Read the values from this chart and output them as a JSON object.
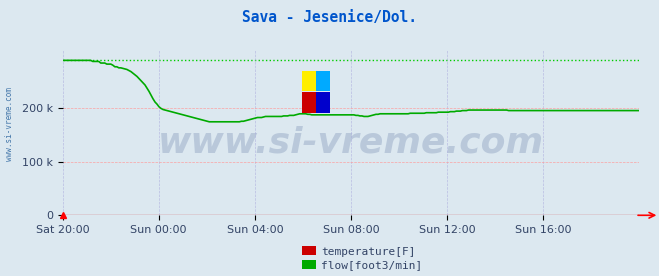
{
  "title": "Sava - Jesenice/Dol.",
  "title_color": "#0055cc",
  "bg_color": "#dce8f0",
  "plot_bg_color": "#dce8f0",
  "grid_color_h": "#ff9999",
  "grid_color_v": "#aaaadd",
  "xlabel": "",
  "ylabel": "",
  "yticks": [
    0,
    100000,
    200000
  ],
  "ytick_labels": [
    "0",
    "100 k",
    "200 k"
  ],
  "ylim": [
    0,
    310000
  ],
  "xlim": [
    0,
    288
  ],
  "xtick_positions": [
    0,
    48,
    96,
    144,
    192,
    240
  ],
  "xtick_labels": [
    "Sat 20:00",
    "Sun 00:00",
    "Sun 04:00",
    "Sun 08:00",
    "Sun 12:00",
    "Sun 16:00"
  ],
  "watermark": "www.si-vreme.com",
  "watermark_color": "#1a3a7a",
  "watermark_alpha": 0.18,
  "watermark_fontsize": 26,
  "sidebar_text": "www.si-vreme.com",
  "sidebar_color": "#4477aa",
  "flow_color": "#00aa00",
  "flow_max_color": "#00cc00",
  "temp_color": "#cc0000",
  "legend_labels": [
    "temperature[F]",
    "flow[foot3/min]"
  ],
  "legend_colors": [
    "#cc0000",
    "#00aa00"
  ],
  "flow_data": [
    290000,
    290000,
    290000,
    290000,
    290000,
    290000,
    290000,
    290000,
    290000,
    290000,
    290000,
    290000,
    290000,
    290000,
    290000,
    288000,
    288000,
    288000,
    288000,
    285000,
    285000,
    285000,
    283000,
    283000,
    283000,
    281000,
    278000,
    278000,
    276000,
    276000,
    275000,
    274000,
    273000,
    271000,
    269000,
    266000,
    263000,
    260000,
    256000,
    252000,
    248000,
    244000,
    238000,
    232000,
    225000,
    218000,
    212000,
    208000,
    203000,
    200000,
    198000,
    197000,
    196000,
    195000,
    194000,
    193000,
    192000,
    191000,
    190000,
    189000,
    188000,
    187000,
    186000,
    185000,
    184000,
    183000,
    182000,
    181000,
    180000,
    179000,
    178000,
    177000,
    176000,
    175000,
    175000,
    175000,
    175000,
    175000,
    175000,
    175000,
    175000,
    175000,
    175000,
    175000,
    175000,
    175000,
    175000,
    175000,
    175000,
    176000,
    176000,
    177000,
    178000,
    179000,
    180000,
    181000,
    182000,
    183000,
    183000,
    183000,
    184000,
    185000,
    185000,
    185000,
    185000,
    185000,
    185000,
    185000,
    185000,
    185000,
    186000,
    186000,
    186000,
    187000,
    187000,
    187000,
    188000,
    189000,
    190000,
    190000,
    190000,
    190000,
    189000,
    189000,
    188000,
    188000,
    188000,
    188000,
    188000,
    188000,
    188000,
    188000,
    188000,
    188000,
    188000,
    188000,
    188000,
    188000,
    188000,
    188000,
    188000,
    188000,
    188000,
    188000,
    188000,
    188000,
    187000,
    187000,
    186000,
    186000,
    185000,
    185000,
    185000,
    186000,
    187000,
    188000,
    189000,
    189000,
    190000,
    190000,
    190000,
    190000,
    190000,
    190000,
    190000,
    190000,
    190000,
    190000,
    190000,
    190000,
    190000,
    190000,
    190000,
    191000,
    191000,
    191000,
    191000,
    191000,
    191000,
    191000,
    191000,
    192000,
    192000,
    192000,
    192000,
    192000,
    192000,
    193000,
    193000,
    193000,
    193000,
    193000,
    193000,
    194000,
    194000,
    194000,
    195000,
    195000,
    195000,
    196000,
    196000,
    196000,
    197000,
    197000,
    197000,
    197000,
    197000,
    197000,
    197000,
    197000,
    197000,
    197000,
    197000,
    197000,
    197000,
    197000,
    197000,
    197000,
    197000,
    197000,
    197000,
    197000,
    196000,
    196000,
    196000,
    196000,
    196000,
    196000,
    196000,
    196000,
    196000,
    196000,
    196000,
    196000,
    196000,
    196000,
    196000,
    196000,
    196000,
    196000,
    196000,
    196000,
    196000,
    196000,
    196000,
    196000,
    196000,
    196000,
    196000,
    196000,
    196000,
    196000,
    196000,
    196000,
    196000,
    196000,
    196000,
    196000,
    196000,
    196000,
    196000,
    196000,
    196000,
    196000,
    196000,
    196000,
    196000,
    196000,
    196000,
    196000,
    196000,
    196000,
    196000,
    196000,
    196000,
    196000,
    196000,
    196000,
    196000,
    196000,
    196000,
    196000,
    196000,
    196000,
    196000,
    196000,
    196000,
    196000
  ],
  "temp_data_value": 0,
  "flow_max_value": 290000,
  "logo_colors": [
    "#ffee00",
    "#00aaff",
    "#cc0000",
    "#0000cc"
  ],
  "tick_fontsize": 8,
  "tick_color": "#334466"
}
